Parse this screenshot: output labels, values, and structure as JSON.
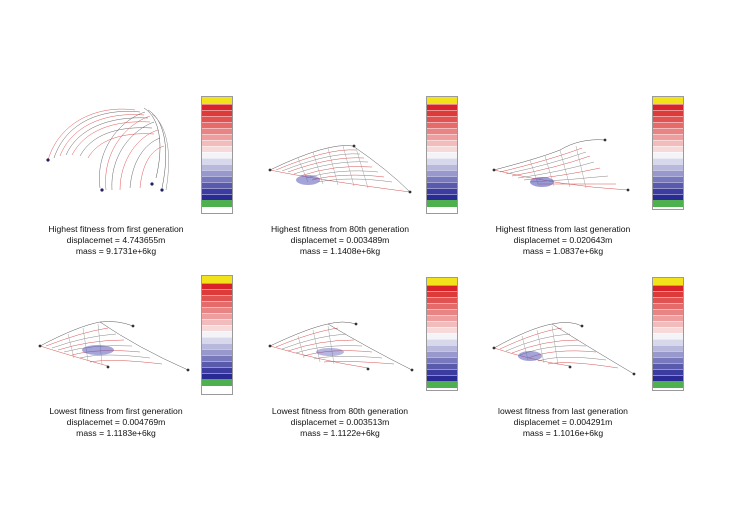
{
  "panels": [
    {
      "line1": "Highest fitness from first generation",
      "line2": "displacemet =  4.743655m",
      "line3": "mass = 9.1731e+6kg"
    },
    {
      "line1": "Highest fitness from 80th generation",
      "line2": "displacemet =  0.003489m",
      "line3": "mass = 1.1408e+6kg"
    },
    {
      "line1": "Highest fitness from last generation",
      "line2": "displacemet =  0.020643m",
      "line3": "mass = 1.0837e+6kg"
    },
    {
      "line1": "Lowest fitness from first generation",
      "line2": "displacemet =  0.004769m",
      "line3": "mass = 1.1183e+6kg"
    },
    {
      "line1": "Lowest fitness from 80th generation",
      "line2": "displacemet =  0.003513m",
      "line3": "mass = 1.1122e+6kg"
    },
    {
      "line1": "lowest fitness from last generation",
      "line2": "displacemet =  0.004291m",
      "line3": "mass = 1.1016e+6kg"
    }
  ],
  "legend": {
    "colors": [
      "#d9222a",
      "#dd3a3a",
      "#e15252",
      "#e56a6a",
      "#e98484",
      "#ee9e9e",
      "#f3bcbc",
      "#f8d9d9",
      "#f4f4f8",
      "#d8d8ec",
      "#b8b8dd",
      "#9898cd",
      "#7878bd",
      "#5a5aad",
      "#3c3ca0",
      "#2a2a94"
    ],
    "top_color": "#f2e21a",
    "bottom_color": "#4fb04f",
    "mesh_color": "#3d3d3d",
    "tension_color": "#e03030",
    "compression_color": "#3a3ad0"
  }
}
